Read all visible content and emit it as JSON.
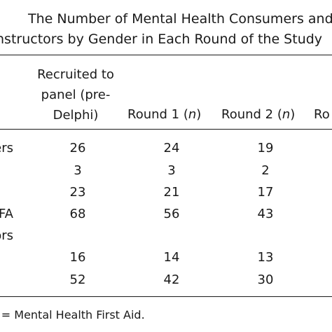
{
  "title": {
    "line1": "The Number of Mental Health Consumers and",
    "line2": "nstructors by Gender in Each Round of the Study"
  },
  "header": {
    "col1_lines": [
      "Recruited to",
      "panel (pre-",
      "Delphi)"
    ],
    "col2": "Round 1 (n)",
    "col3": "Round 2 (n)",
    "col4_partial": "Ro"
  },
  "rows": [
    {
      "label": "ers",
      "values": [
        "26",
        "24",
        "19"
      ]
    },
    {
      "label": "",
      "values": [
        "3",
        "3",
        "2"
      ]
    },
    {
      "label": "",
      "values": [
        "23",
        "21",
        "17"
      ]
    },
    {
      "label": "HFA",
      "values": [
        "68",
        "56",
        "43"
      ]
    },
    {
      "label": "tors",
      "values": [
        "",
        "",
        ""
      ]
    },
    {
      "label": "",
      "values": [
        "16",
        "14",
        "13"
      ]
    },
    {
      "label": "",
      "values": [
        "52",
        "42",
        "30"
      ]
    }
  ],
  "footnote": "FA = Mental Health First Aid."
}
